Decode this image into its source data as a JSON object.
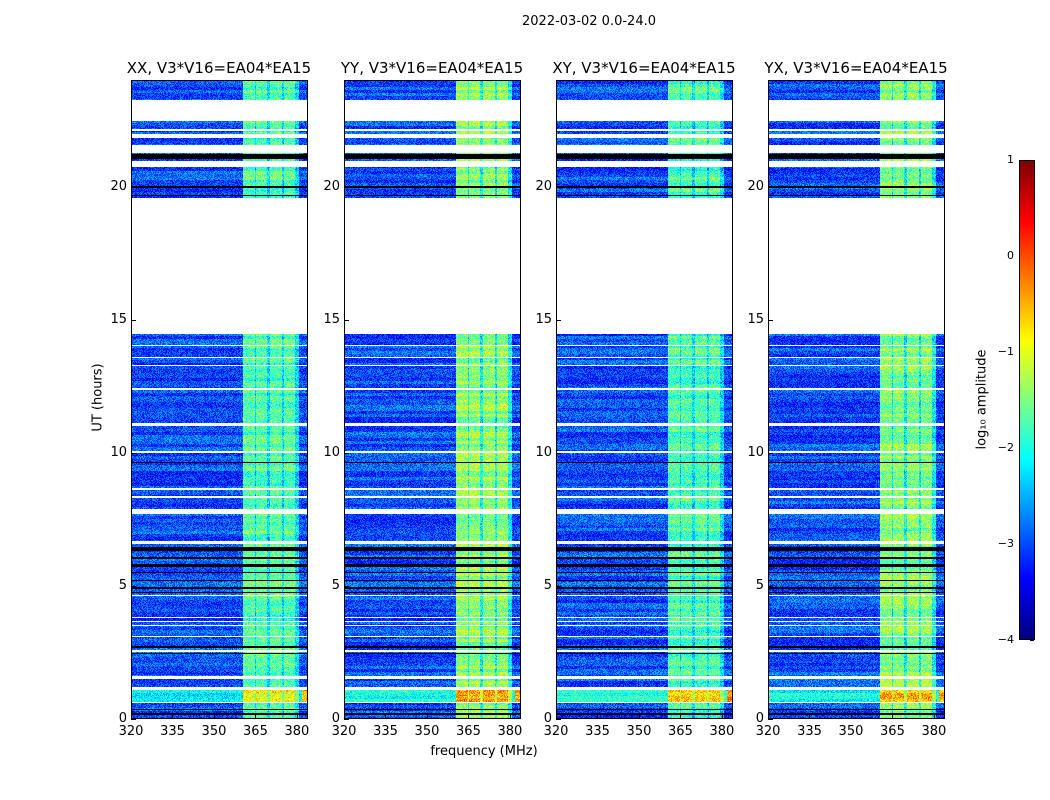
{
  "chart_data": {
    "type": "heatmap",
    "title": "2022-03-02 0.0-24.0",
    "xlabel": "frequency (MHz)",
    "ylabel": "UT (hours)",
    "xlim": [
      320,
      384
    ],
    "ylim": [
      0,
      24
    ],
    "xticks": [
      "320",
      "335",
      "350",
      "365",
      "380"
    ],
    "xtick_values": [
      320,
      335,
      350,
      365,
      380
    ],
    "yticks": [
      "0",
      "5",
      "10",
      "15",
      "20"
    ],
    "ytick_values": [
      0,
      5,
      10,
      15,
      20
    ],
    "panels": [
      {
        "title": "XX, V3*V16=EA04*EA15",
        "band_boost": 1.3
      },
      {
        "title": "YY, V3*V16=EA04*EA15",
        "band_boost": 1.6
      },
      {
        "title": "XY, V3*V16=EA04*EA15",
        "band_boost": 1.25
      },
      {
        "title": "YX, V3*V16=EA04*EA15",
        "band_boost": 1.55
      }
    ],
    "background_log10_amplitude": -3.0,
    "band_blocks_mhz": [
      [
        360.5,
        364.8
      ],
      [
        365.5,
        369.5
      ],
      [
        370.3,
        375.0
      ],
      [
        375.7,
        379.6
      ]
    ],
    "flagged_hours": [
      [
        22.5,
        23.3
      ],
      [
        22.1,
        22.2
      ],
      [
        21.85,
        22.0
      ],
      [
        21.3,
        21.6
      ],
      [
        20.75,
        21.0
      ],
      [
        14.45,
        19.6
      ],
      [
        14.0,
        14.05
      ],
      [
        13.55,
        13.6
      ],
      [
        13.25,
        13.3
      ],
      [
        12.35,
        12.45
      ],
      [
        11.0,
        11.1
      ],
      [
        10.0,
        10.05
      ],
      [
        8.6,
        8.65
      ],
      [
        8.3,
        8.35
      ],
      [
        7.7,
        7.88
      ],
      [
        6.55,
        6.66
      ],
      [
        4.6,
        4.65
      ],
      [
        3.75,
        3.8
      ],
      [
        3.6,
        3.65
      ],
      [
        3.45,
        3.5
      ],
      [
        3.05,
        3.1
      ],
      [
        2.5,
        2.55
      ],
      [
        1.47,
        1.57
      ],
      [
        1.05,
        1.17
      ],
      [
        0.55,
        0.6
      ]
    ],
    "dark_hours": [
      [
        21.05,
        21.25
      ],
      [
        19.95,
        20.05
      ],
      [
        19.65,
        19.7
      ],
      [
        12.4,
        12.45
      ],
      [
        9.6,
        9.65
      ],
      [
        6.3,
        6.45
      ],
      [
        6.0,
        6.05
      ],
      [
        5.7,
        5.8
      ],
      [
        5.45,
        5.5
      ],
      [
        5.15,
        5.2
      ],
      [
        4.85,
        4.95
      ],
      [
        4.7,
        4.75
      ],
      [
        2.65,
        2.7
      ],
      [
        2.4,
        2.45
      ],
      [
        0.3,
        0.35
      ],
      [
        0.1,
        0.2
      ]
    ],
    "colorbar": {
      "label": "log₁₀ amplitude",
      "range": [
        -4,
        1
      ],
      "colormap": "jet",
      "ticks": [
        "1",
        "0",
        "−1",
        "−2",
        "−3",
        "−4"
      ],
      "tick_values": [
        1,
        0,
        -1,
        -2,
        -3,
        -4
      ]
    }
  }
}
